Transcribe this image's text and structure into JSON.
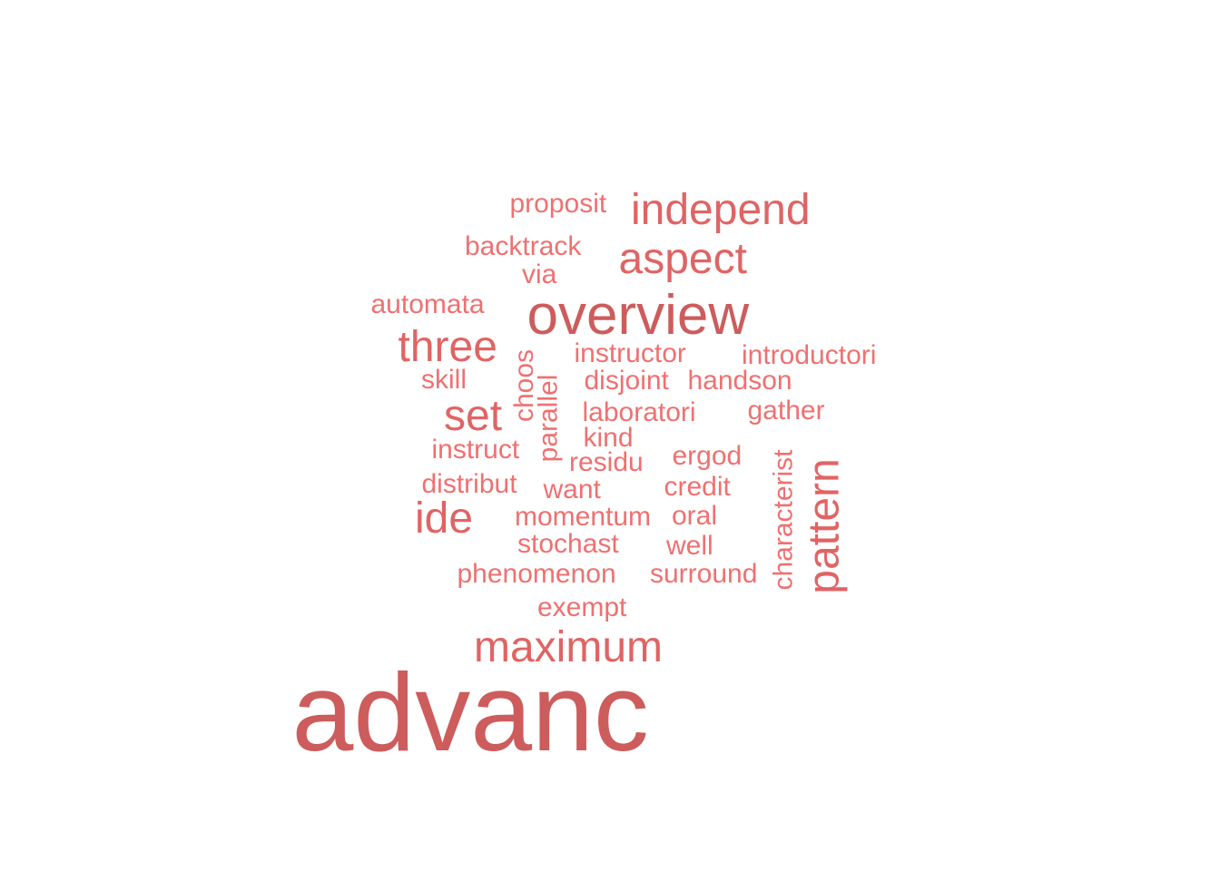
{
  "word_cloud": {
    "colors": {
      "large": "#cd5c5c",
      "medium": "#e06464",
      "small": "#f07070"
    },
    "words": [
      {
        "text": "advanc",
        "tier": "large"
      },
      {
        "text": "overview",
        "tier": "large"
      },
      {
        "text": "maximum",
        "tier": "medium"
      },
      {
        "text": "independ",
        "tier": "medium"
      },
      {
        "text": "aspect",
        "tier": "medium"
      },
      {
        "text": "three",
        "tier": "medium"
      },
      {
        "text": "set",
        "tier": "medium"
      },
      {
        "text": "ide",
        "tier": "medium"
      },
      {
        "text": "pattern",
        "tier": "medium"
      },
      {
        "text": "proposit",
        "tier": "small"
      },
      {
        "text": "backtrack",
        "tier": "small"
      },
      {
        "text": "via",
        "tier": "small"
      },
      {
        "text": "automata",
        "tier": "small"
      },
      {
        "text": "instructor",
        "tier": "small"
      },
      {
        "text": "introductori",
        "tier": "small"
      },
      {
        "text": "skill",
        "tier": "small"
      },
      {
        "text": "disjoint",
        "tier": "small"
      },
      {
        "text": "handson",
        "tier": "small"
      },
      {
        "text": "choos",
        "tier": "small"
      },
      {
        "text": "parallel",
        "tier": "small"
      },
      {
        "text": "laboratori",
        "tier": "small"
      },
      {
        "text": "gather",
        "tier": "small"
      },
      {
        "text": "kind",
        "tier": "small"
      },
      {
        "text": "instruct",
        "tier": "small"
      },
      {
        "text": "residu",
        "tier": "small"
      },
      {
        "text": "ergod",
        "tier": "small"
      },
      {
        "text": "distribut",
        "tier": "small"
      },
      {
        "text": "want",
        "tier": "small"
      },
      {
        "text": "credit",
        "tier": "small"
      },
      {
        "text": "characterist",
        "tier": "small"
      },
      {
        "text": "momentum",
        "tier": "small"
      },
      {
        "text": "oral",
        "tier": "small"
      },
      {
        "text": "stochast",
        "tier": "small"
      },
      {
        "text": "well",
        "tier": "small"
      },
      {
        "text": "phenomenon",
        "tier": "small"
      },
      {
        "text": "surround",
        "tier": "small"
      },
      {
        "text": "exempt",
        "tier": "small"
      }
    ]
  }
}
